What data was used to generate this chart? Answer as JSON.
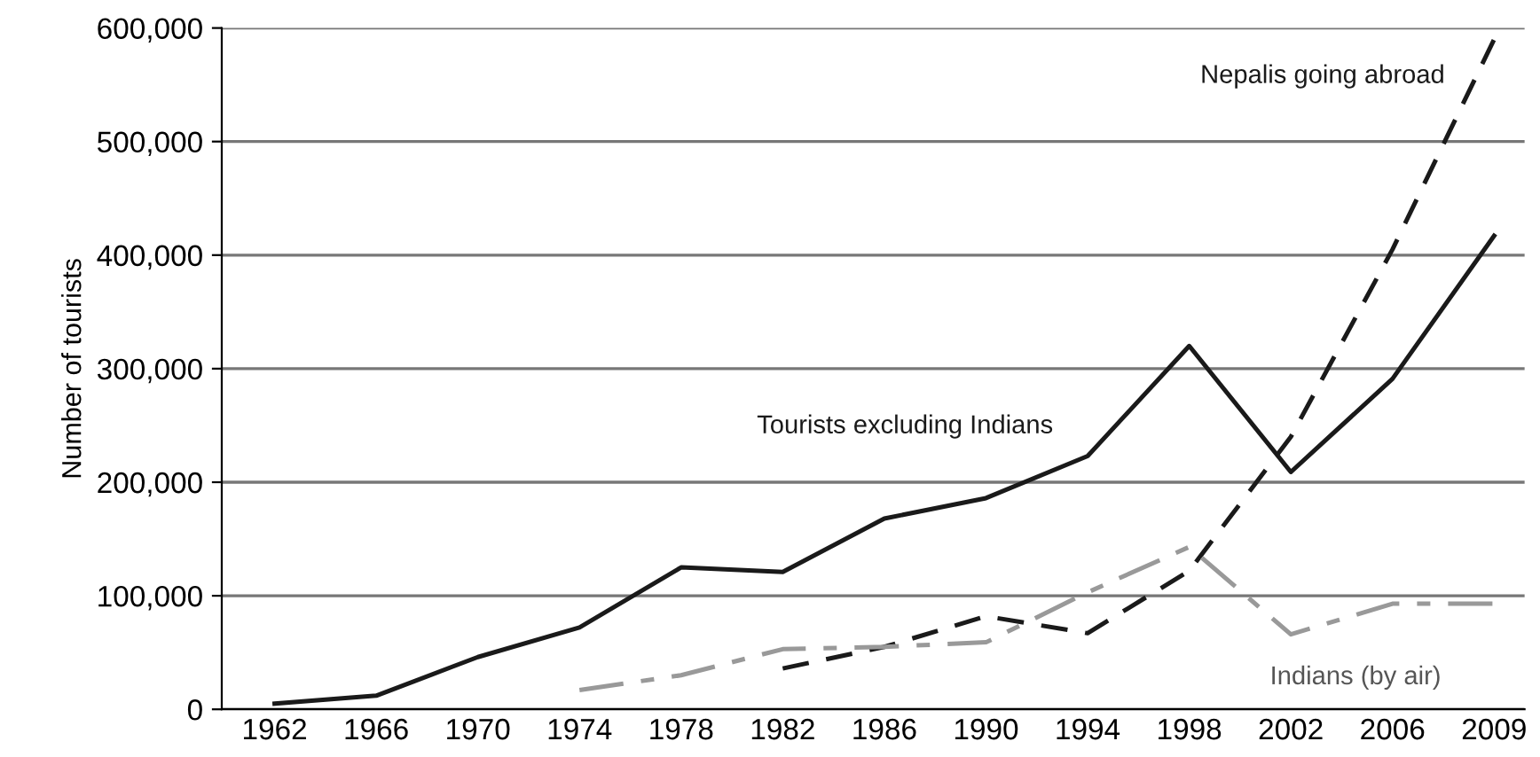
{
  "chart_data": {
    "type": "line",
    "ylabel": "Number of tourists",
    "categories": [
      "1962",
      "1966",
      "1970",
      "1974",
      "1978",
      "1982",
      "1986",
      "1990",
      "1994",
      "1998",
      "2002",
      "2006",
      "2009"
    ],
    "series": [
      {
        "name": "Tourists excluding Indians",
        "color": "#1a1a1a",
        "line_style": "solid",
        "values": [
          5000,
          12000,
          46000,
          72000,
          125000,
          121000,
          168000,
          186000,
          223000,
          320000,
          209000,
          291000,
          417000
        ]
      },
      {
        "name": "Nepalis going abroad",
        "color": "#1a1a1a",
        "line_style": "dashed",
        "values": [
          null,
          null,
          null,
          null,
          null,
          36000,
          55000,
          82000,
          67000,
          122000,
          240000,
          405000,
          590000
        ]
      },
      {
        "name": "Indians (by air)",
        "color": "#999999",
        "line_style": "dashdot",
        "values": [
          null,
          null,
          null,
          17000,
          30000,
          53000,
          55000,
          59000,
          103000,
          143000,
          66000,
          93000,
          93000
        ]
      }
    ],
    "ylim": [
      0,
      600000
    ],
    "yticks": [
      0,
      {
        "value": 100000,
        "label": "100,000"
      },
      {
        "value": 200000,
        "label": "200,000"
      },
      {
        "value": 300000,
        "label": "300,000"
      },
      {
        "value": 400000,
        "label": "400,000"
      },
      {
        "value": 500000,
        "label": "500,000"
      },
      {
        "value": 600000,
        "label": "600,000"
      }
    ],
    "grid": "y",
    "legend": false
  }
}
